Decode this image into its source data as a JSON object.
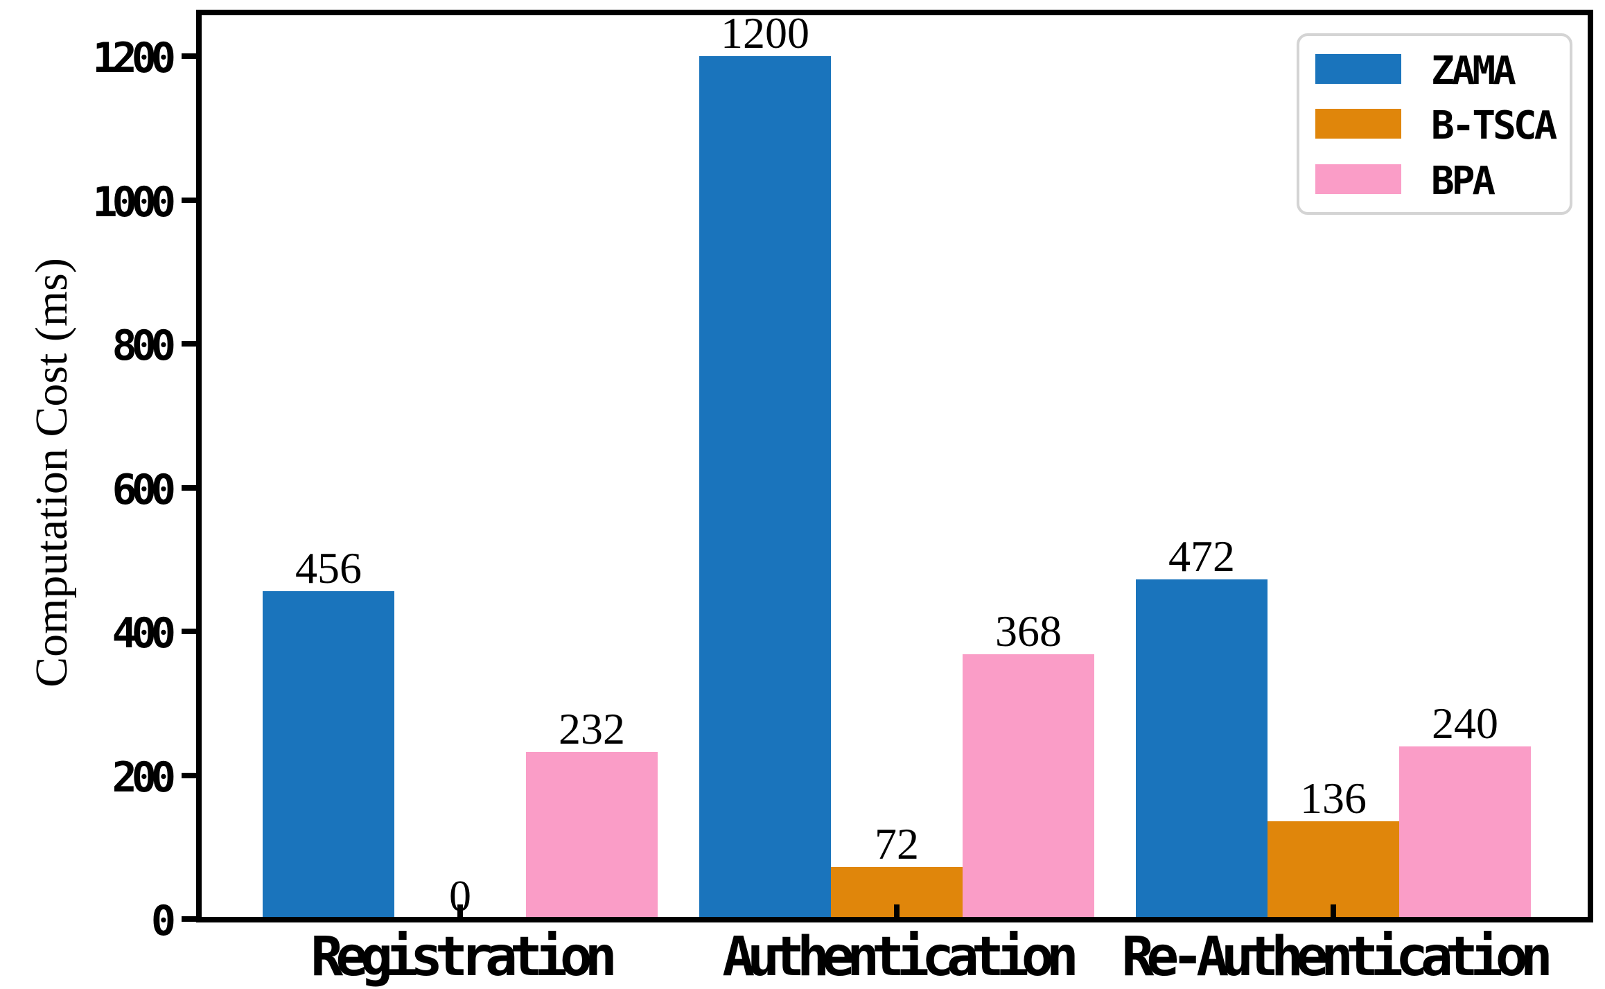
{
  "chart_data": {
    "type": "bar",
    "title": "",
    "xlabel": "",
    "ylabel": "Computation Cost (ms)",
    "categories": [
      "Registration",
      "Authentication",
      "Re-Authentication"
    ],
    "series": [
      {
        "name": "ZAMA",
        "color": "#1A74BC",
        "values": [
          456,
          1200,
          472
        ]
      },
      {
        "name": "B-TSCA",
        "color": "#E0860B",
        "values": [
          0,
          72,
          136
        ]
      },
      {
        "name": "BPA",
        "color": "#FA9DC7",
        "values": [
          232,
          368,
          240
        ]
      }
    ],
    "bar_value_labels": [
      "456",
      "0",
      "232",
      "1200",
      "72",
      "368",
      "472",
      "136",
      "240"
    ],
    "yticks": [
      0,
      200,
      400,
      600,
      800,
      1000,
      1200
    ],
    "ylim": [
      0,
      1264
    ],
    "grid": false,
    "legend_position": "upper right",
    "axis_color": "#000000",
    "legend_border_color": "#d4d4d4"
  }
}
